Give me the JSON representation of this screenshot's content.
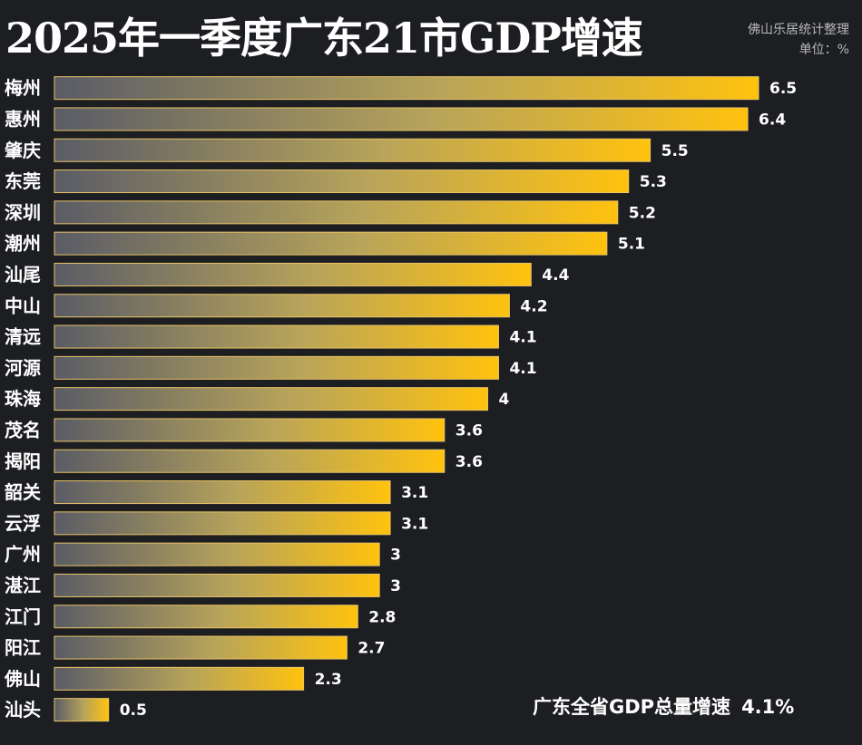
{
  "title": "2025年一季度广东21市GDP增速",
  "source": "佛山乐居统计整理",
  "unit": "单位：%",
  "summary": {
    "label": "广东全省GDP总量增速",
    "value": "4.1%"
  },
  "colors": {
    "background": "#1c1e22",
    "bar_start": "#5a5c66",
    "bar_end": "#ffc20e",
    "text": "#ffffff"
  },
  "chart_data": {
    "type": "bar",
    "orientation": "horizontal",
    "title": "2025年一季度广东21市GDP增速",
    "unit": "单位：%",
    "categories": [
      "梅州",
      "惠州",
      "肇庆",
      "东莞",
      "深圳",
      "潮州",
      "汕尾",
      "中山",
      "清远",
      "河源",
      "珠海",
      "茂名",
      "揭阳",
      "韶关",
      "云浮",
      "广州",
      "湛江",
      "江门",
      "阳江",
      "佛山",
      "汕头"
    ],
    "values": [
      6.5,
      6.4,
      5.5,
      5.3,
      5.2,
      5.1,
      4.4,
      4.2,
      4.1,
      4.1,
      4,
      3.6,
      3.6,
      3.1,
      3.1,
      3,
      3,
      2.8,
      2.7,
      2.3,
      0.5
    ],
    "xlim": [
      0,
      6.5
    ],
    "grid": false,
    "legend": "none"
  }
}
